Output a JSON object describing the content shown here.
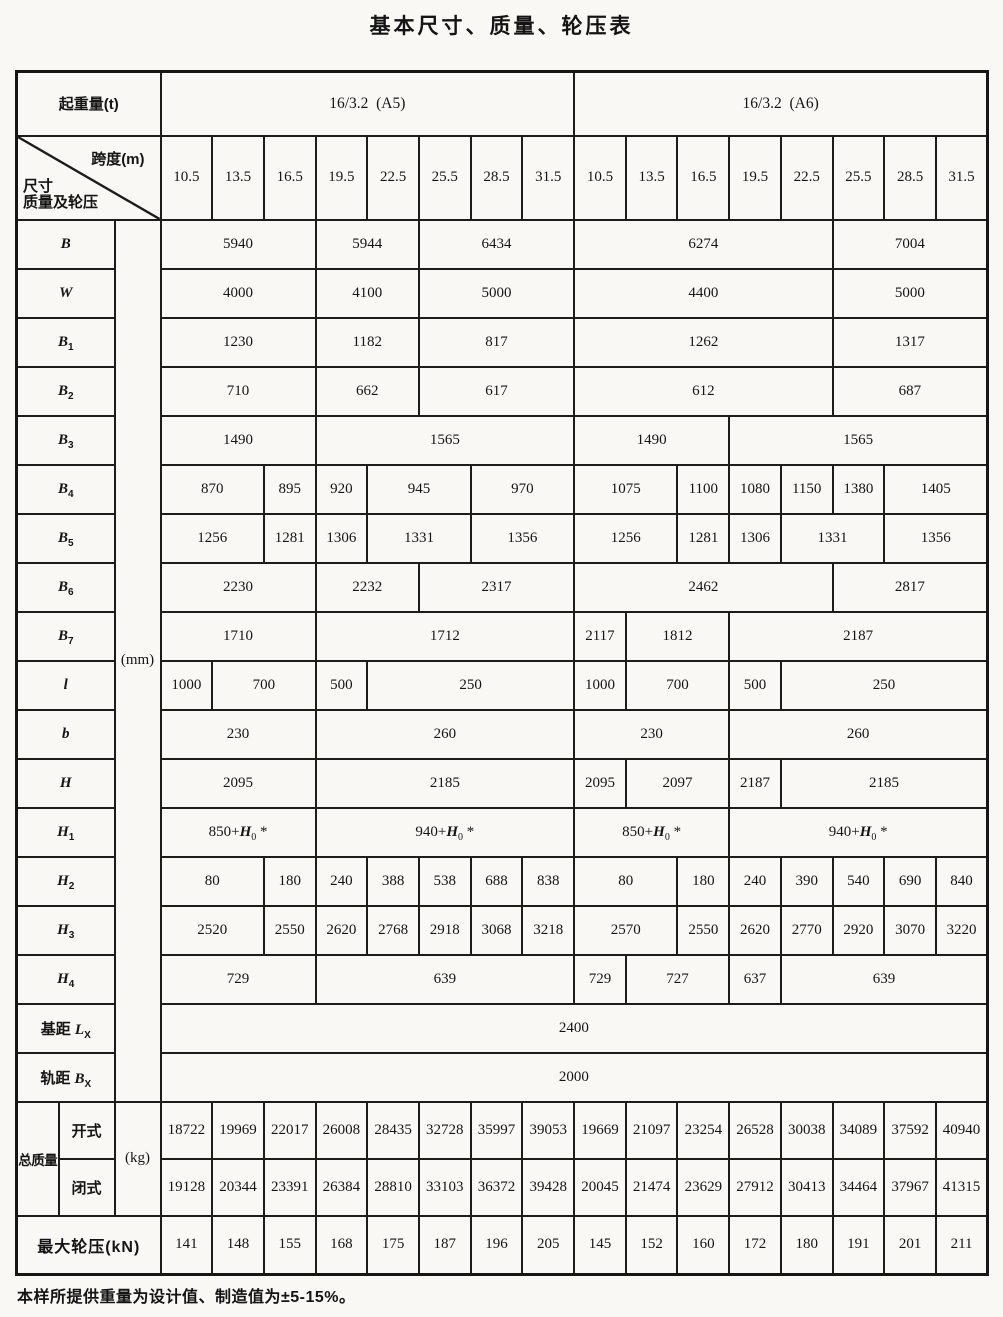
{
  "page": {
    "title": "基本尺寸、质量、轮压表",
    "footnote": "本样所提供重量为设计值、制造值为±5-15%。"
  },
  "header": {
    "capacity_label": "起重量(t)",
    "groups": [
      "16/3.2  (A5)",
      "16/3.2  (A6)"
    ],
    "diagonal": {
      "top_right": "跨度(m)",
      "mid_left": "尺寸",
      "bottom_left": "质量及轮压"
    },
    "spans": [
      "10.5",
      "13.5",
      "16.5",
      "19.5",
      "22.5",
      "25.5",
      "28.5",
      "31.5",
      "10.5",
      "13.5",
      "16.5",
      "19.5",
      "22.5",
      "25.5",
      "28.5",
      "31.5"
    ]
  },
  "units": {
    "mm": "(mm)",
    "kg": "(kg)"
  },
  "rows": [
    {
      "label": "B",
      "cells": [
        [
          3,
          "5940"
        ],
        [
          2,
          "5944"
        ],
        [
          3,
          "6434"
        ],
        [
          5,
          "6274"
        ],
        [
          3,
          "7004"
        ]
      ]
    },
    {
      "label": "W",
      "cells": [
        [
          3,
          "4000"
        ],
        [
          2,
          "4100"
        ],
        [
          3,
          "5000"
        ],
        [
          5,
          "4400"
        ],
        [
          3,
          "5000"
        ]
      ]
    },
    {
      "label": "B_1",
      "cells": [
        [
          3,
          "1230"
        ],
        [
          2,
          "1182"
        ],
        [
          3,
          "817"
        ],
        [
          5,
          "1262"
        ],
        [
          3,
          "1317"
        ]
      ]
    },
    {
      "label": "B_2",
      "cells": [
        [
          3,
          "710"
        ],
        [
          2,
          "662"
        ],
        [
          3,
          "617"
        ],
        [
          5,
          "612"
        ],
        [
          3,
          "687"
        ]
      ]
    },
    {
      "label": "B_3",
      "cells": [
        [
          3,
          "1490"
        ],
        [
          5,
          "1565"
        ],
        [
          3,
          "1490"
        ],
        [
          5,
          "1565"
        ]
      ]
    },
    {
      "label": "B_4",
      "cells": [
        [
          2,
          "870"
        ],
        [
          1,
          "895"
        ],
        [
          1,
          "920"
        ],
        [
          2,
          "945"
        ],
        [
          2,
          "970"
        ],
        [
          2,
          "1075"
        ],
        [
          1,
          "1100"
        ],
        [
          1,
          "1080"
        ],
        [
          1,
          "1150"
        ],
        [
          1,
          "1380"
        ],
        [
          2,
          "1405"
        ]
      ]
    },
    {
      "label": "B_5",
      "cells": [
        [
          2,
          "1256"
        ],
        [
          1,
          "1281"
        ],
        [
          1,
          "1306"
        ],
        [
          2,
          "1331"
        ],
        [
          2,
          "1356"
        ],
        [
          2,
          "1256"
        ],
        [
          1,
          "1281"
        ],
        [
          1,
          "1306"
        ],
        [
          2,
          "1331"
        ],
        [
          2,
          "1356"
        ]
      ]
    },
    {
      "label": "B_6",
      "cells": [
        [
          3,
          "2230"
        ],
        [
          2,
          "2232"
        ],
        [
          3,
          "2317"
        ],
        [
          5,
          "2462"
        ],
        [
          3,
          "2817"
        ]
      ]
    },
    {
      "label": "B_7",
      "cells": [
        [
          3,
          "1710"
        ],
        [
          5,
          "1712"
        ],
        [
          1,
          "2117"
        ],
        [
          2,
          "1812"
        ],
        [
          5,
          "2187"
        ]
      ]
    },
    {
      "label": "l",
      "cells": [
        [
          1,
          "1000"
        ],
        [
          2,
          "700"
        ],
        [
          1,
          "500"
        ],
        [
          4,
          "250"
        ],
        [
          1,
          "1000"
        ],
        [
          2,
          "700"
        ],
        [
          1,
          "500"
        ],
        [
          4,
          "250"
        ]
      ]
    },
    {
      "label": "b",
      "cells": [
        [
          3,
          "230"
        ],
        [
          5,
          "260"
        ],
        [
          3,
          "230"
        ],
        [
          5,
          "260"
        ]
      ]
    },
    {
      "label": "H",
      "cells": [
        [
          3,
          "2095"
        ],
        [
          5,
          "2185"
        ],
        [
          1,
          "2095"
        ],
        [
          2,
          "2097"
        ],
        [
          1,
          "2187"
        ],
        [
          4,
          "2185"
        ]
      ]
    },
    {
      "label": "H_1",
      "cells": [
        [
          3,
          "850+H_0 *"
        ],
        [
          5,
          "940+H_0 *"
        ],
        [
          3,
          "850+H_0 *"
        ],
        [
          5,
          "940+H_0 *"
        ]
      ]
    },
    {
      "label": "H_2",
      "cells": [
        [
          2,
          "80"
        ],
        [
          1,
          "180"
        ],
        [
          1,
          "240"
        ],
        [
          1,
          "388"
        ],
        [
          1,
          "538"
        ],
        [
          1,
          "688"
        ],
        [
          1,
          "838"
        ],
        [
          2,
          "80"
        ],
        [
          1,
          "180"
        ],
        [
          1,
          "240"
        ],
        [
          1,
          "390"
        ],
        [
          1,
          "540"
        ],
        [
          1,
          "690"
        ],
        [
          1,
          "840"
        ]
      ]
    },
    {
      "label": "H_3",
      "cells": [
        [
          2,
          "2520"
        ],
        [
          1,
          "2550"
        ],
        [
          1,
          "2620"
        ],
        [
          1,
          "2768"
        ],
        [
          1,
          "2918"
        ],
        [
          1,
          "3068"
        ],
        [
          1,
          "3218"
        ],
        [
          2,
          "2570"
        ],
        [
          1,
          "2550"
        ],
        [
          1,
          "2620"
        ],
        [
          1,
          "2770"
        ],
        [
          1,
          "2920"
        ],
        [
          1,
          "3070"
        ],
        [
          1,
          "3220"
        ]
      ]
    },
    {
      "label": "H_4",
      "cells": [
        [
          3,
          "729"
        ],
        [
          5,
          "639"
        ],
        [
          1,
          "729"
        ],
        [
          2,
          "727"
        ],
        [
          1,
          "637"
        ],
        [
          4,
          "639"
        ]
      ]
    },
    {
      "label": "基距 L_X",
      "cells": [
        [
          16,
          "2400"
        ]
      ]
    },
    {
      "label": "轨距 B_X",
      "cells": [
        [
          16,
          "2000"
        ]
      ]
    }
  ],
  "mass": {
    "group_label": "总质量",
    "sub_rows": [
      {
        "label": "开式",
        "values": [
          "18722",
          "19969",
          "22017",
          "26008",
          "28435",
          "32728",
          "35997",
          "39053",
          "19669",
          "21097",
          "23254",
          "26528",
          "30038",
          "34089",
          "37592",
          "40940"
        ]
      },
      {
        "label": "闭式",
        "values": [
          "19128",
          "20344",
          "23391",
          "26384",
          "28810",
          "33103",
          "36372",
          "39428",
          "20045",
          "21474",
          "23629",
          "27912",
          "30413",
          "34464",
          "37967",
          "41315"
        ]
      }
    ]
  },
  "wheel": {
    "label": "最大轮压(kN)",
    "values": [
      "141",
      "148",
      "155",
      "168",
      "175",
      "187",
      "196",
      "205",
      "145",
      "152",
      "160",
      "172",
      "180",
      "191",
      "201",
      "211"
    ]
  }
}
